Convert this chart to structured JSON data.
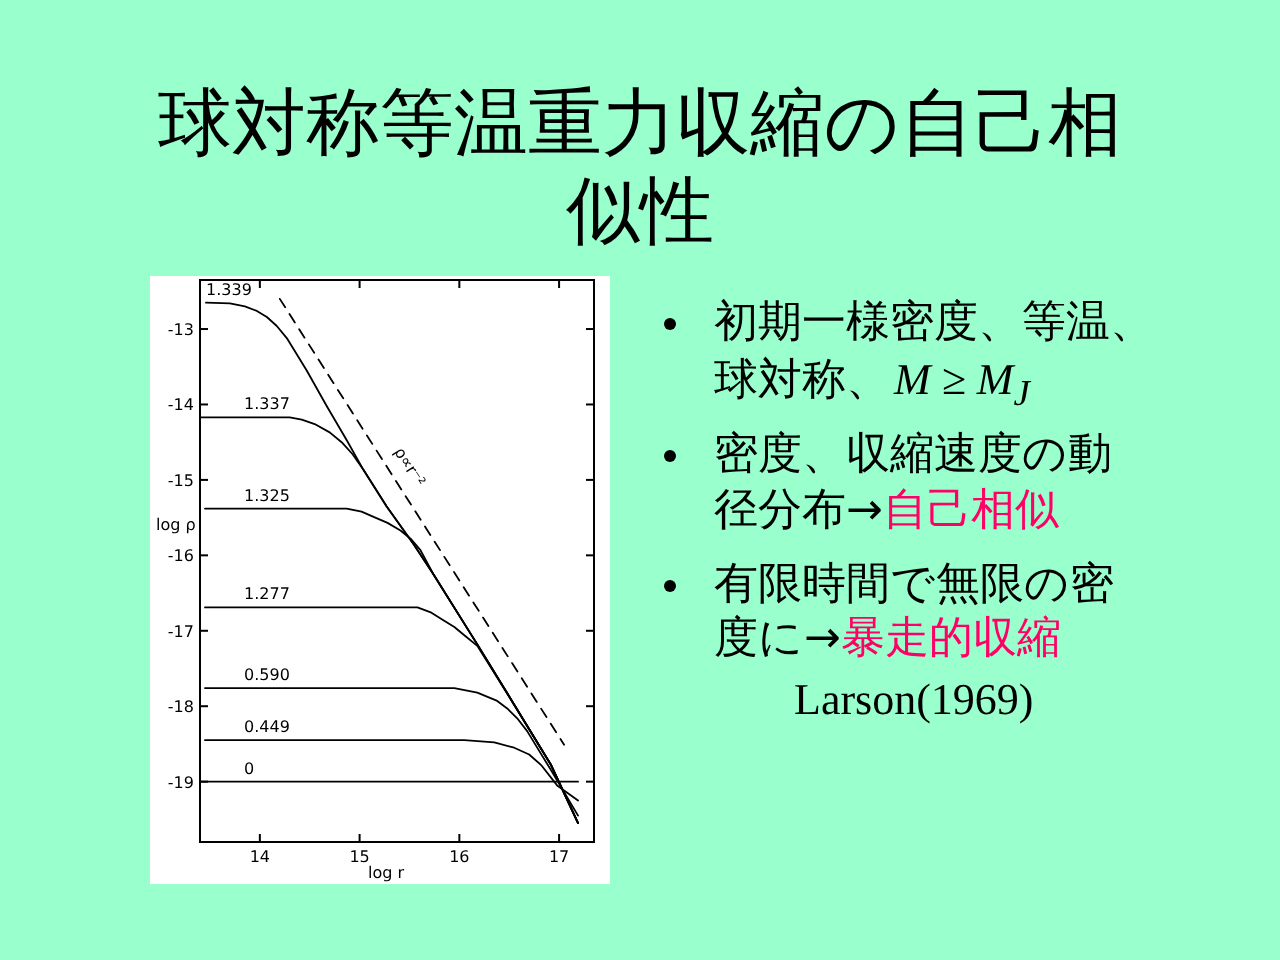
{
  "chart_data": {
    "type": "line",
    "title": "球対称等温重力収縮の自己相似性",
    "xlabel": "log r",
    "ylabel": "log ρ",
    "annotations": [
      "初期一様密度、等温、",
      "球対称、",
      "M ≥ M$_{J}$",
      "密度、収縮速度の動",
      "径分布→",
      "自己相似",
      "有限時間で無限の密",
      "度に→",
      "暴走的収縮",
      "Larson(1969)"
    ],
    "xlim": [
      13.4,
      17.35
    ],
    "ylim": [
      -19.8,
      -12.35
    ],
    "xticks": [
      14,
      15,
      16,
      17
    ],
    "yticks": [
      -13,
      -14,
      -15,
      -16,
      -17,
      -18,
      -19
    ],
    "line_style": "solid",
    "series": [
      {
        "name": "1.339",
        "color": "#000000",
        "x": [
          13.46,
          13.7,
          13.85,
          13.97,
          14.07,
          14.17,
          14.27,
          14.47,
          14.67,
          14.87,
          15.04,
          15.27,
          15.54,
          15.74,
          16.18,
          16.55,
          16.92,
          17.19
        ],
        "values": [
          -12.65,
          -12.66,
          -12.7,
          -12.76,
          -12.84,
          -12.96,
          -13.12,
          -13.55,
          -14.02,
          -14.47,
          -14.87,
          -15.35,
          -15.85,
          -16.25,
          -17.18,
          -17.98,
          -18.78,
          -19.55
        ]
      },
      {
        "name": "1.337",
        "color": "#000000",
        "x": [
          13.4,
          14.3,
          14.42,
          14.55,
          14.7,
          14.82,
          14.93,
          15.04,
          15.27,
          15.54,
          15.74,
          16.18,
          16.55,
          16.92,
          17.19
        ],
        "values": [
          -14.17,
          -14.17,
          -14.2,
          -14.26,
          -14.37,
          -14.5,
          -14.66,
          -14.87,
          -15.35,
          -15.85,
          -16.25,
          -17.18,
          -17.98,
          -18.78,
          -19.55
        ]
      },
      {
        "name": "1.325",
        "color": "#000000",
        "x": [
          13.45,
          14.87,
          15.02,
          15.14,
          15.28,
          15.41,
          15.52,
          15.61,
          15.74,
          16.18,
          16.55,
          16.92,
          17.19
        ],
        "values": [
          -15.38,
          -15.38,
          -15.42,
          -15.49,
          -15.57,
          -15.67,
          -15.79,
          -15.93,
          -16.25,
          -17.18,
          -17.98,
          -18.78,
          -19.55
        ]
      },
      {
        "name": "1.277",
        "color": "#000000",
        "x": [
          13.45,
          15.58,
          15.72,
          15.84,
          15.95,
          16.05,
          16.18,
          16.55,
          16.92,
          17.19
        ],
        "values": [
          -16.69,
          -16.69,
          -16.76,
          -16.86,
          -16.95,
          -17.06,
          -17.2,
          -17.98,
          -18.78,
          -19.55
        ]
      },
      {
        "name": "0.590",
        "color": "#000000",
        "x": [
          13.45,
          15.95,
          16.18,
          16.38,
          16.48,
          16.58,
          16.68,
          16.92,
          17.19
        ],
        "values": [
          -17.76,
          -17.76,
          -17.82,
          -17.93,
          -18.03,
          -18.16,
          -18.33,
          -18.85,
          -19.45
        ]
      },
      {
        "name": "0.449",
        "color": "#000000",
        "x": [
          13.45,
          16.05,
          16.35,
          16.55,
          16.7,
          16.82,
          16.98,
          17.19
        ],
        "values": [
          -18.45,
          -18.45,
          -18.48,
          -18.55,
          -18.64,
          -18.78,
          -19.05,
          -19.25
        ]
      },
      {
        "name": "0",
        "color": "#000000",
        "x": [
          13.4,
          17.19
        ],
        "values": [
          -19.0,
          -19.0
        ]
      },
      {
        "name": "ρ∝r⁻²",
        "color": "#000000",
        "line_style": "dashed",
        "x": [
          14.2,
          17.05
        ],
        "values": [
          -12.6,
          -18.51
        ]
      }
    ]
  }
}
